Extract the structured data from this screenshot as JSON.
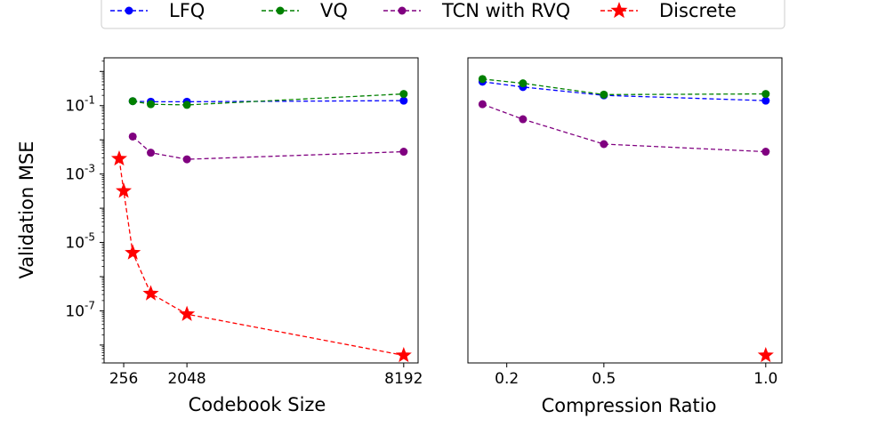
{
  "legend": {
    "entries": [
      {
        "name": "LFQ",
        "color": "#0000ff",
        "marker": "circle"
      },
      {
        "name": "VQ",
        "color": "#008000",
        "marker": "circle"
      },
      {
        "name": "TCN with RVQ",
        "color": "#800080",
        "marker": "circle"
      },
      {
        "name": "Discrete",
        "color": "#ff0000",
        "marker": "star"
      }
    ]
  },
  "chart_data": [
    {
      "type": "line",
      "xlabel": "Codebook Size",
      "ylabel": "Validation MSE",
      "yscale": "log",
      "xlim": [
        -300,
        8600
      ],
      "ylim": [
        3e-09,
        2.5
      ],
      "xticks": [
        256,
        2048,
        8192
      ],
      "xtick_labels": [
        "256",
        "2048",
        "8192"
      ],
      "yticks": [
        1e-07,
        1e-05,
        0.001,
        0.1
      ],
      "ytick_labels": [
        "10^-7",
        "10^-5",
        "10^-3",
        "10^-1"
      ],
      "series": [
        {
          "name": "LFQ",
          "x": [
            512,
            1024,
            2048,
            8192
          ],
          "y": [
            0.135,
            0.13,
            0.13,
            0.14
          ]
        },
        {
          "name": "VQ",
          "x": [
            512,
            1024,
            2048,
            8192
          ],
          "y": [
            0.135,
            0.11,
            0.105,
            0.22
          ]
        },
        {
          "name": "TCN with RVQ",
          "x": [
            512,
            1024,
            2048,
            8192
          ],
          "y": [
            0.0125,
            0.0042,
            0.0027,
            0.0045
          ]
        },
        {
          "name": "Discrete",
          "x": [
            128,
            256,
            512,
            1024,
            2048,
            8192
          ],
          "y": [
            0.0028,
            0.00032,
            5e-06,
            3.2e-07,
            8e-08,
            5e-09
          ]
        }
      ]
    },
    {
      "type": "line",
      "xlabel": "Compression Ratio",
      "ylabel": "",
      "yscale": "log",
      "xlim": [
        0.08,
        1.05
      ],
      "ylim": [
        3e-09,
        2.5
      ],
      "xticks": [
        0.2,
        0.5,
        1.0
      ],
      "xtick_labels": [
        "0.2",
        "0.5",
        "1.0"
      ],
      "series": [
        {
          "name": "LFQ",
          "x": [
            0.125,
            0.25,
            0.5,
            1.0
          ],
          "y": [
            0.5,
            0.35,
            0.2,
            0.14
          ]
        },
        {
          "name": "VQ",
          "x": [
            0.125,
            0.25,
            0.5,
            1.0
          ],
          "y": [
            0.6,
            0.45,
            0.21,
            0.22
          ]
        },
        {
          "name": "TCN with RVQ",
          "x": [
            0.125,
            0.25,
            0.5,
            1.0
          ],
          "y": [
            0.11,
            0.04,
            0.0075,
            0.0045
          ]
        },
        {
          "name": "Discrete",
          "x": [
            1.0
          ],
          "y": [
            5e-09
          ]
        }
      ]
    }
  ]
}
